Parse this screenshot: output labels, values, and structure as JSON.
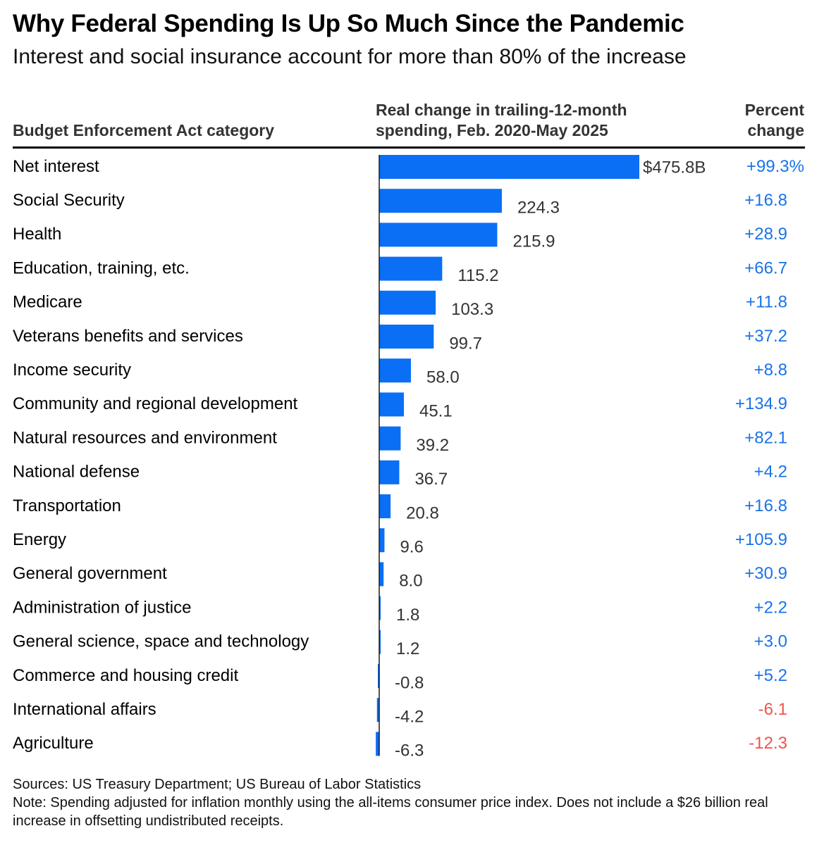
{
  "title": "Why Federal Spending Is Up So Much Since the Pandemic",
  "subtitle": "Interest and social insurance account for more than 80% of the increase",
  "columns": {
    "category": "Budget Enforcement Act category",
    "change": "Real change in trailing-12-month spending, Feb. 2020-May 2025",
    "percent": "Percent change"
  },
  "colors": {
    "bar": "#0a6ff5",
    "positive": "#1a73e8",
    "negative": "#ef5350",
    "text": "#000000",
    "value_text": "#333333"
  },
  "chart_data": {
    "type": "bar",
    "orientation": "horizontal",
    "categories": [
      "Net interest",
      "Social Security",
      "Health",
      "Education, training, etc.",
      "Medicare",
      "Veterans benefits and services",
      "Income security",
      "Community and regional development",
      "Natural resources and environment",
      "National defense",
      "Transportation",
      "Energy",
      "General government",
      "Administration of justice",
      "General science, space and technology",
      "Commerce and housing credit",
      "International affairs",
      "Agriculture"
    ],
    "values": [
      475.8,
      224.3,
      215.9,
      115.2,
      103.3,
      99.7,
      58.0,
      45.1,
      39.2,
      36.7,
      20.8,
      9.6,
      8.0,
      1.8,
      1.2,
      -0.8,
      -4.2,
      -6.3
    ],
    "value_labels": [
      "$475.8B",
      "224.3",
      "215.9",
      "115.2",
      "103.3",
      "99.7",
      "58.0",
      "45.1",
      "39.2",
      "36.7",
      "20.8",
      "9.6",
      "8.0",
      "1.8",
      "1.2",
      "-0.8",
      "-4.2",
      "-6.3"
    ],
    "percent_change": [
      99.3,
      16.8,
      28.9,
      66.7,
      11.8,
      37.2,
      8.8,
      134.9,
      82.1,
      4.2,
      16.8,
      105.9,
      30.9,
      2.2,
      3.0,
      5.2,
      -6.1,
      -12.3
    ],
    "percent_labels": [
      "+99.3%",
      "+16.8",
      "+28.9",
      "+66.7",
      "+11.8",
      "+37.2",
      "+8.8",
      "+134.9",
      "+82.1",
      "+4.2",
      "+16.8",
      "+105.9",
      "+30.9",
      "+2.2",
      "+3.0",
      "+5.2",
      "-6.1",
      "-12.3"
    ],
    "xlim": [
      -6.3,
      475.8
    ],
    "unit": "billions of dollars"
  },
  "footer": {
    "sources": "Sources: US Treasury Department; US Bureau of Labor Statistics",
    "note": "Note: Spending adjusted for inflation monthly using the all-items consumer price index. Does not include a $26 billion real increase in offsetting undistributed receipts."
  }
}
